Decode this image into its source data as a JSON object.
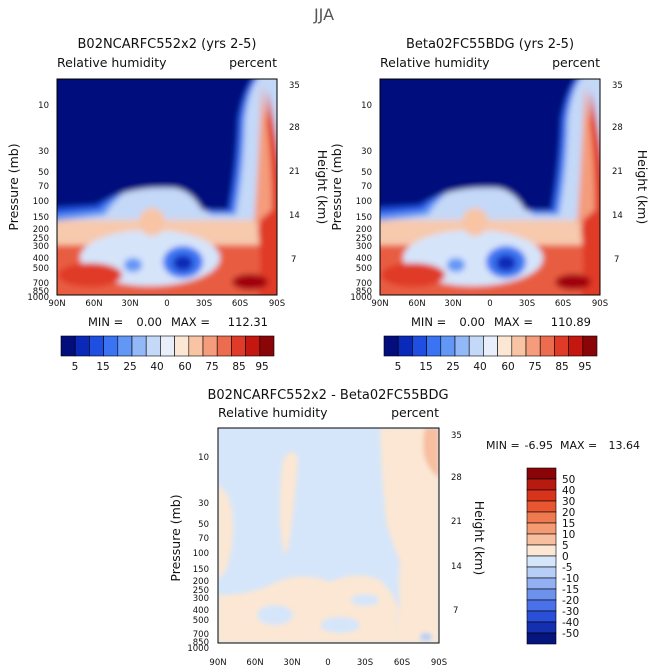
{
  "page_title": "JJA",
  "chart_data": [
    {
      "type": "heatmap",
      "title": "B02NCARFC552x2 (yrs 2-5)",
      "left_subtitle": "Relative humidity",
      "right_subtitle": "percent",
      "ylabel": "Pressure (mb)",
      "ylabel_right": "Height (km)",
      "x_ticks": [
        "90N",
        "60N",
        "30N",
        "0",
        "30S",
        "60S",
        "90S"
      ],
      "y_ticks_left": [
        "10",
        "30",
        "50",
        "70",
        "100",
        "150",
        "200",
        "250",
        "300",
        "400",
        "500",
        "700",
        "850",
        "1000"
      ],
      "y_ticks_right": [
        "35",
        "28",
        "21",
        "14",
        "7"
      ],
      "stats": {
        "min_label": "MIN =",
        "min": "0.00",
        "max_label": "MAX =",
        "max": "112.31"
      },
      "colorbar_labels": [
        "5",
        "15",
        "25",
        "40",
        "60",
        "75",
        "85",
        "95"
      ]
    },
    {
      "type": "heatmap",
      "title": "Beta02FC55BDG (yrs 2-5)",
      "left_subtitle": "Relative humidity",
      "right_subtitle": "percent",
      "ylabel": "Pressure (mb)",
      "ylabel_right": "Height (km)",
      "x_ticks": [
        "90N",
        "60N",
        "30N",
        "0",
        "30S",
        "60S",
        "90S"
      ],
      "y_ticks_left": [
        "10",
        "30",
        "50",
        "70",
        "100",
        "150",
        "200",
        "250",
        "300",
        "400",
        "500",
        "700",
        "850",
        "1000"
      ],
      "y_ticks_right": [
        "35",
        "28",
        "21",
        "14",
        "7"
      ],
      "stats": {
        "min_label": "MIN =",
        "min": "0.00",
        "max_label": "MAX =",
        "max": "110.89"
      },
      "colorbar_labels": [
        "5",
        "15",
        "25",
        "40",
        "60",
        "75",
        "85",
        "95"
      ]
    },
    {
      "type": "heatmap",
      "title": "B02NCARFC552x2 - Beta02FC55BDG",
      "left_subtitle": "Relative humidity",
      "right_subtitle": "percent",
      "ylabel": "Pressure (mb)",
      "ylabel_right": "Height (km)",
      "x_ticks": [
        "90N",
        "60N",
        "30N",
        "0",
        "30S",
        "60S",
        "90S"
      ],
      "y_ticks_left": [
        "10",
        "30",
        "50",
        "70",
        "100",
        "150",
        "200",
        "250",
        "300",
        "400",
        "500",
        "700",
        "850",
        "1000"
      ],
      "y_ticks_right": [
        "35",
        "28",
        "21",
        "14",
        "7"
      ],
      "stats": {
        "min_label": "MIN =",
        "min": "-6.95",
        "max_label": "MAX =",
        "max": "13.64"
      },
      "colorbar_labels": [
        "50",
        "40",
        "30",
        "20",
        "15",
        "10",
        "5",
        "0",
        "-5",
        "-10",
        "-15",
        "-20",
        "-30",
        "-40",
        "-50"
      ]
    }
  ],
  "colors": {
    "rh_scale": [
      "#030d7c",
      "#0a29b8",
      "#1e4fe0",
      "#3b74f2",
      "#6397f5",
      "#93b8f7",
      "#c4d8f8",
      "#e8eefa",
      "#fbe7d3",
      "#f8c4a4",
      "#f49c7b",
      "#ec6c4f",
      "#e03a28",
      "#c4170f",
      "#8a0508"
    ],
    "diff_scale": [
      "#8a0508",
      "#b81a10",
      "#d8341c",
      "#e85530",
      "#f07a50",
      "#f59a72",
      "#f8bea0",
      "#fbe7d3",
      "#d6e6fa",
      "#b7cff7",
      "#93b1f2",
      "#6d92ee",
      "#4a71ea",
      "#2a4fd8",
      "#142fb0",
      "#06157e"
    ]
  }
}
